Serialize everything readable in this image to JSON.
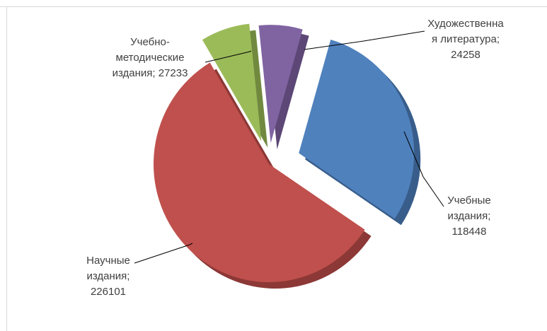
{
  "chart_data": {
    "type": "pie",
    "style": "3d-exploded",
    "title": "",
    "legend": "none",
    "slices": [
      {
        "label_lines": [
          "Художественна",
          "я литература;",
          "24258"
        ],
        "category": "Художественная литература",
        "value": 24258,
        "color": "#8064a2",
        "side_color": "#5c4776"
      },
      {
        "label_lines": [
          "Учебные",
          "издания;",
          "118448"
        ],
        "category": "Учебные издания",
        "value": 118448,
        "color": "#4f81bd",
        "side_color": "#385d8a"
      },
      {
        "label_lines": [
          "Научные",
          "издания;",
          "226101"
        ],
        "category": "Научные издания",
        "value": 226101,
        "color": "#c0504d",
        "side_color": "#8c3836"
      },
      {
        "label_lines": [
          "Учебно-",
          "методические",
          "издания; 27233"
        ],
        "category": "Учебно-методические издания",
        "value": 27233,
        "color": "#9bbb59",
        "side_color": "#71893f"
      }
    ]
  }
}
